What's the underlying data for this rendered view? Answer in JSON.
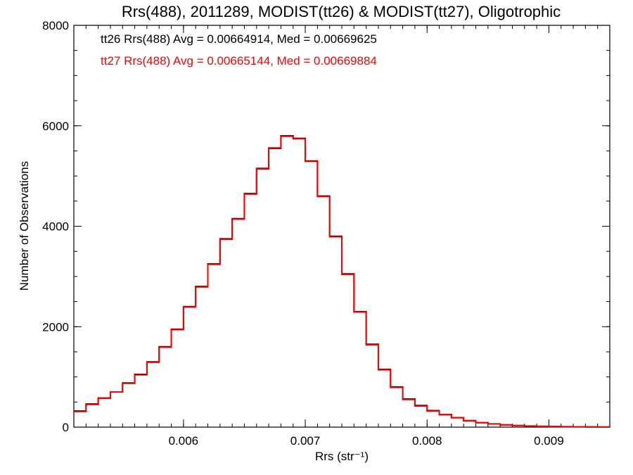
{
  "chart_data": {
    "type": "line",
    "step": true,
    "title": "Rrs(488), 2011289, MODIST(tt26) & MODIST(tt27), Oligotrophic",
    "xlabel": "Rrs (str⁻¹)",
    "ylabel": "Number of Observations",
    "xlim": [
      0.0051,
      0.0095
    ],
    "ylim": [
      0,
      8000
    ],
    "x_ticks": [
      0.006,
      0.007,
      0.008,
      0.009
    ],
    "x_tick_labels": [
      "0.006",
      "0.007",
      "0.008",
      "0.009"
    ],
    "y_ticks": [
      0,
      2000,
      4000,
      6000,
      8000
    ],
    "y_tick_labels": [
      "0",
      "2000",
      "4000",
      "6000",
      "8000"
    ],
    "x_minor_step": 0.0001,
    "y_minor_step": 500,
    "grid": false,
    "annotations": [
      {
        "text": "tt26 Rrs(488) Avg = 0.00664914, Med = 0.00669625",
        "color": "#000000"
      },
      {
        "text": "tt27 Rrs(488) Avg = 0.00665144, Med = 0.00669884",
        "color": "#ff0000"
      }
    ],
    "x": [
      0.0051,
      0.0052,
      0.0053,
      0.0054,
      0.0055,
      0.0056,
      0.0057,
      0.0058,
      0.0059,
      0.006,
      0.0061,
      0.0062,
      0.0063,
      0.0064,
      0.0065,
      0.0066,
      0.0067,
      0.0068,
      0.0069,
      0.007,
      0.0071,
      0.0072,
      0.0073,
      0.0074,
      0.0075,
      0.0076,
      0.0077,
      0.0078,
      0.0079,
      0.008,
      0.0081,
      0.0082,
      0.0083,
      0.0084,
      0.0085,
      0.0086,
      0.0087,
      0.0088,
      0.0089,
      0.009,
      0.0091,
      0.0092,
      0.0093,
      0.0094,
      0.0095
    ],
    "series": [
      {
        "name": "tt26",
        "color": "#000000",
        "values": [
          320,
          460,
          580,
          700,
          880,
          1050,
          1300,
          1600,
          1950,
          2400,
          2800,
          3250,
          3750,
          4150,
          4650,
          5150,
          5550,
          5800,
          5750,
          5300,
          4600,
          3800,
          3050,
          2300,
          1650,
          1150,
          800,
          560,
          430,
          330,
          250,
          190,
          130,
          90,
          65,
          45,
          32,
          22,
          16,
          12,
          9,
          7,
          5,
          4,
          3
        ]
      },
      {
        "name": "tt27",
        "color": "#ff0000",
        "values": [
          310,
          450,
          575,
          700,
          870,
          1040,
          1290,
          1590,
          1940,
          2390,
          2790,
          3240,
          3740,
          4140,
          4640,
          5140,
          5560,
          5790,
          5740,
          5290,
          4590,
          3790,
          3040,
          2290,
          1640,
          1140,
          790,
          550,
          420,
          320,
          245,
          185,
          125,
          88,
          63,
          44,
          31,
          21,
          15,
          11,
          8,
          6,
          4,
          3,
          2
        ]
      }
    ]
  }
}
